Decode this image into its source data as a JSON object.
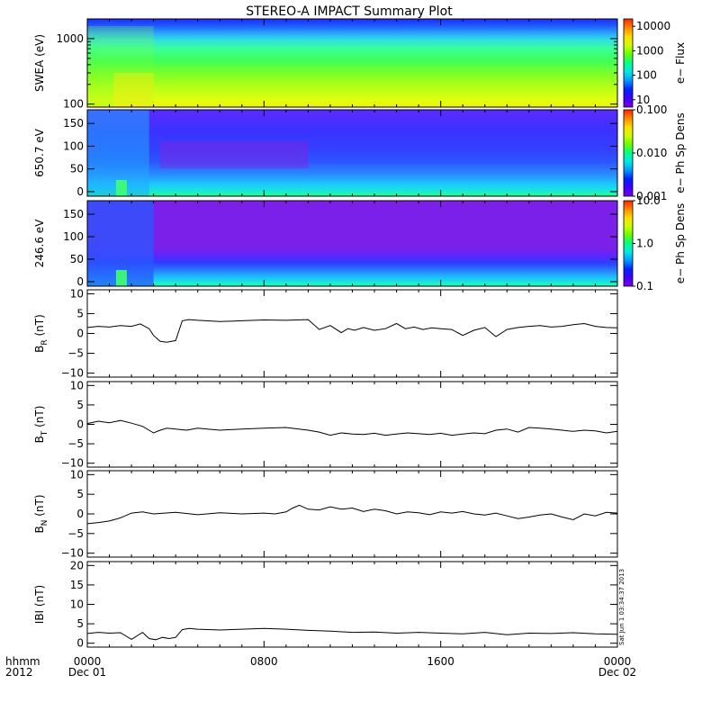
{
  "title": "STEREO-A IMPACT Summary Plot",
  "stamp": "Sat Jun 1 03:34:37 2013",
  "footer": {
    "hhmm": "hhmm",
    "year": "2012"
  },
  "xaxis": {
    "ticks": [
      {
        "hour": 0,
        "label": "0000",
        "date": "Dec 01"
      },
      {
        "hour": 8,
        "label": "0800",
        "date": ""
      },
      {
        "hour": 16,
        "label": "1600",
        "date": ""
      },
      {
        "hour": 24,
        "label": "0000",
        "date": "Dec 02"
      }
    ],
    "range_hours": [
      0,
      24
    ]
  },
  "colors": {
    "rainbow": [
      "#7a00e6",
      "#4000ff",
      "#0022ff",
      "#0099ff",
      "#00e8e8",
      "#00ff88",
      "#66ff00",
      "#ccff00",
      "#ffdd00",
      "#ff8800",
      "#ff2200"
    ]
  },
  "chart_data": [
    {
      "type": "heatmap",
      "id": "swea",
      "ylabel": "SWEA (eV)",
      "yscale": "log",
      "ylim": [
        90,
        2000
      ],
      "yticks": [
        {
          "v": 100,
          "label": "100"
        },
        {
          "v": 1000,
          "label": "1000"
        }
      ],
      "colorbar": {
        "label": "e− Flux",
        "scale": "log",
        "range": [
          5,
          20000
        ],
        "ticks": [
          {
            "v": 10,
            "label": "10"
          },
          {
            "v": 100,
            "label": "100"
          },
          {
            "v": 1000,
            "label": "1000"
          },
          {
            "v": 10000,
            "label": "10000"
          }
        ]
      }
    },
    {
      "type": "heatmap",
      "id": "pa650",
      "ylabel": "650.7 eV",
      "ylim": [
        -10,
        180
      ],
      "yticks": [
        {
          "v": 0,
          "label": "0"
        },
        {
          "v": 50,
          "label": "50"
        },
        {
          "v": 100,
          "label": "100"
        },
        {
          "v": 150,
          "label": "150"
        }
      ],
      "colorbar": {
        "label": "e− Ph Sp Dens",
        "scale": "log",
        "range": [
          0.001,
          0.1
        ],
        "ticks": [
          {
            "v": 0.001,
            "label": "0.001"
          },
          {
            "v": 0.01,
            "label": "0.010"
          },
          {
            "v": 0.1,
            "label": "0.100"
          }
        ]
      }
    },
    {
      "type": "heatmap",
      "id": "pa246",
      "ylabel": "246.6 eV",
      "ylim": [
        -10,
        180
      ],
      "yticks": [
        {
          "v": 0,
          "label": "0"
        },
        {
          "v": 50,
          "label": "50"
        },
        {
          "v": 100,
          "label": "100"
        },
        {
          "v": 150,
          "label": "150"
        }
      ],
      "colorbar": {
        "label": "e− Ph Sp Dens",
        "scale": "log",
        "range": [
          0.1,
          10
        ],
        "ticks": [
          {
            "v": 0.1,
            "label": "0.1"
          },
          {
            "v": 1,
            "label": "1.0"
          },
          {
            "v": 10,
            "label": "10.0"
          }
        ]
      }
    },
    {
      "type": "line",
      "id": "br",
      "ylabel": "B",
      "ysub": "R",
      "yunit": "(nT)",
      "ylim": [
        -11,
        11
      ],
      "yticks": [
        {
          "v": -10,
          "label": "−10"
        },
        {
          "v": -5,
          "label": "−5"
        },
        {
          "v": 0,
          "label": "0"
        },
        {
          "v": 5,
          "label": "5"
        },
        {
          "v": 10,
          "label": "10"
        }
      ],
      "x": [
        0,
        0.5,
        1,
        1.5,
        2,
        2.4,
        2.8,
        3.0,
        3.3,
        3.6,
        4.0,
        4.3,
        4.6,
        5,
        6,
        7,
        8,
        9,
        10,
        10.5,
        11,
        11.5,
        11.8,
        12.1,
        12.5,
        13,
        13.5,
        14,
        14.4,
        14.8,
        15.2,
        15.6,
        16,
        16.5,
        17,
        17.5,
        18,
        18.5,
        19,
        19.5,
        20,
        20.5,
        21,
        21.5,
        22,
        22.5,
        23,
        23.5,
        24
      ],
      "y": [
        1.5,
        1.8,
        1.6,
        2.0,
        1.8,
        2.4,
        1.2,
        -0.5,
        -2.0,
        -2.2,
        -1.8,
        3.2,
        3.5,
        3.3,
        3.0,
        3.2,
        3.4,
        3.3,
        3.5,
        1.0,
        2.0,
        0.2,
        1.2,
        0.8,
        1.5,
        0.8,
        1.2,
        2.5,
        1.2,
        1.6,
        1.0,
        1.4,
        1.2,
        1.0,
        -0.5,
        0.8,
        1.5,
        -0.8,
        1.0,
        1.5,
        1.8,
        2.0,
        1.6,
        1.8,
        2.2,
        2.5,
        1.8,
        1.5,
        1.4
      ]
    },
    {
      "type": "line",
      "id": "bt",
      "ylabel": "B",
      "ysub": "T",
      "yunit": "(nT)",
      "ylim": [
        -11,
        11
      ],
      "yticks": [
        {
          "v": -10,
          "label": "−10"
        },
        {
          "v": -5,
          "label": "−5"
        },
        {
          "v": 0,
          "label": "0"
        },
        {
          "v": 5,
          "label": "5"
        },
        {
          "v": 10,
          "label": "10"
        }
      ],
      "x": [
        0,
        0.5,
        1,
        1.5,
        2,
        2.5,
        3,
        3.3,
        3.6,
        4,
        4.5,
        5,
        6,
        7,
        8,
        9,
        10,
        10.5,
        11,
        11.5,
        12,
        12.5,
        13,
        13.5,
        14,
        14.5,
        15,
        15.5,
        16,
        16.5,
        17,
        17.5,
        18,
        18.5,
        19,
        19.5,
        20,
        20.5,
        21,
        21.5,
        22,
        22.5,
        23,
        23.5,
        24
      ],
      "y": [
        0.2,
        0.8,
        0.4,
        1.0,
        0.3,
        -0.5,
        -2.2,
        -1.5,
        -1.0,
        -1.2,
        -1.5,
        -1.0,
        -1.5,
        -1.2,
        -1.0,
        -0.8,
        -1.5,
        -2.0,
        -2.8,
        -2.2,
        -2.5,
        -2.6,
        -2.3,
        -2.8,
        -2.5,
        -2.2,
        -2.4,
        -2.6,
        -2.3,
        -2.8,
        -2.5,
        -2.2,
        -2.4,
        -1.5,
        -1.2,
        -2.0,
        -0.8,
        -1.0,
        -1.2,
        -1.5,
        -1.8,
        -1.5,
        -1.7,
        -2.2,
        -1.8
      ]
    },
    {
      "type": "line",
      "id": "bn",
      "ylabel": "B",
      "ysub": "N",
      "yunit": "(nT)",
      "ylim": [
        -11,
        11
      ],
      "yticks": [
        {
          "v": -10,
          "label": "−10"
        },
        {
          "v": -5,
          "label": "−5"
        },
        {
          "v": 0,
          "label": "0"
        },
        {
          "v": 5,
          "label": "5"
        },
        {
          "v": 10,
          "label": "10"
        }
      ],
      "x": [
        0,
        0.5,
        1,
        1.5,
        2,
        2.5,
        3,
        3.5,
        4,
        5,
        6,
        7,
        8,
        8.5,
        9,
        9.3,
        9.6,
        10,
        10.5,
        11,
        11.5,
        12,
        12.5,
        13,
        13.5,
        14,
        14.5,
        15,
        15.5,
        16,
        16.5,
        17,
        17.5,
        18,
        18.5,
        19,
        19.5,
        20,
        20.5,
        21,
        21.5,
        22,
        22.5,
        23,
        23.5,
        24
      ],
      "y": [
        -2.5,
        -2.2,
        -1.8,
        -1.0,
        0.2,
        0.5,
        0.0,
        0.2,
        0.4,
        -0.2,
        0.3,
        0.0,
        0.2,
        0.0,
        0.5,
        1.5,
        2.2,
        1.2,
        1.0,
        1.8,
        1.2,
        1.5,
        0.6,
        1.2,
        0.8,
        0.0,
        0.5,
        0.3,
        -0.2,
        0.5,
        0.2,
        0.6,
        0.0,
        -0.3,
        0.2,
        -0.5,
        -1.2,
        -0.8,
        -0.3,
        0.0,
        -0.8,
        -1.5,
        0.0,
        -0.5,
        0.4,
        0.2
      ]
    },
    {
      "type": "line",
      "id": "bmag",
      "ylabel": "IBI",
      "ysub": "",
      "yunit": "(nT)",
      "ylim": [
        -1,
        21
      ],
      "yticks": [
        {
          "v": 0,
          "label": "0"
        },
        {
          "v": 5,
          "label": "5"
        },
        {
          "v": 10,
          "label": "10"
        },
        {
          "v": 15,
          "label": "15"
        },
        {
          "v": 20,
          "label": "20"
        }
      ],
      "x": [
        0,
        0.5,
        1,
        1.5,
        2,
        2.5,
        2.8,
        3.1,
        3.4,
        3.7,
        4.0,
        4.3,
        4.6,
        5,
        6,
        7,
        8,
        9,
        10,
        11,
        12,
        13,
        14,
        15,
        16,
        17,
        18,
        19,
        20,
        21,
        22,
        23,
        24
      ],
      "y": [
        2.5,
        2.8,
        2.6,
        2.7,
        1.0,
        2.8,
        1.2,
        0.9,
        1.5,
        1.2,
        1.5,
        3.5,
        3.8,
        3.6,
        3.4,
        3.6,
        3.8,
        3.6,
        3.3,
        3.1,
        2.8,
        2.9,
        2.6,
        2.8,
        2.6,
        2.4,
        2.8,
        2.2,
        2.6,
        2.5,
        2.7,
        2.4,
        2.3
      ]
    }
  ]
}
